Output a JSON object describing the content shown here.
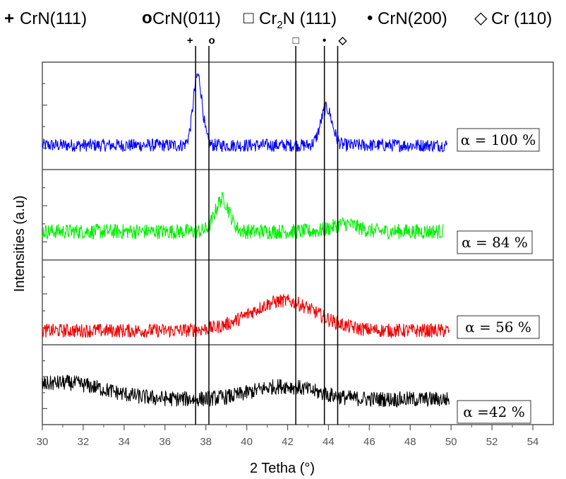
{
  "chart_data": {
    "type": "line",
    "title": "",
    "xlabel": "2 Tetha (°)",
    "ylabel": "Intensities (a.u)",
    "xlim": [
      30,
      55
    ],
    "x_ticks": [
      "30",
      "32",
      "34",
      "36",
      "38",
      "40",
      "42",
      "44",
      "46",
      "48",
      "50",
      "52",
      "54"
    ],
    "legend": [
      {
        "symbol": "+",
        "label": "CrN(111)",
        "position": 37.5
      },
      {
        "symbol": "o",
        "label": "CrN(011)",
        "position": 38.15
      },
      {
        "symbol": "□",
        "label": "Cr",
        "sub": "2",
        "label_rest": "N (111)",
        "position": 42.4
      },
      {
        "symbol": "•",
        "label": "CrN(200)",
        "position": 43.8
      },
      {
        "symbol": "◇",
        "label": "Cr (110)",
        "position": 44.45
      }
    ],
    "series": [
      {
        "name": "α = 100 %",
        "color": "#0000ff",
        "x_range": [
          30,
          49.8
        ],
        "baseline": 0.2,
        "noise": 0.07,
        "peaks": [
          {
            "x": 37.6,
            "height": 0.75,
            "width": 0.22
          },
          {
            "x": 43.9,
            "height": 0.4,
            "width": 0.28
          }
        ]
      },
      {
        "name": "α = 84 %",
        "color": "#00ee00",
        "x_range": [
          30,
          49.6
        ],
        "baseline": 0.3,
        "noise": 0.1,
        "peaks": [
          {
            "x": 38.8,
            "height": 0.42,
            "width": 0.35
          },
          {
            "x": 44.8,
            "height": 0.1,
            "width": 0.6
          }
        ]
      },
      {
        "name": "α = 56 %",
        "color": "#ee0000",
        "x_range": [
          30,
          49.9
        ],
        "baseline": 0.12,
        "noise": 0.1,
        "peaks": [
          {
            "x": 41.8,
            "height": 0.42,
            "width": 1.6
          }
        ]
      },
      {
        "name": "α =42 %",
        "color": "#000000",
        "x_range": [
          30,
          49.9
        ],
        "baseline": 0.3,
        "noise": 0.12,
        "peaks": [
          {
            "x": 31.0,
            "height": 0.25,
            "width": 2.0
          },
          {
            "x": 41.8,
            "height": 0.2,
            "width": 1.5
          }
        ]
      }
    ],
    "grid": false,
    "legend_placement": "top"
  }
}
